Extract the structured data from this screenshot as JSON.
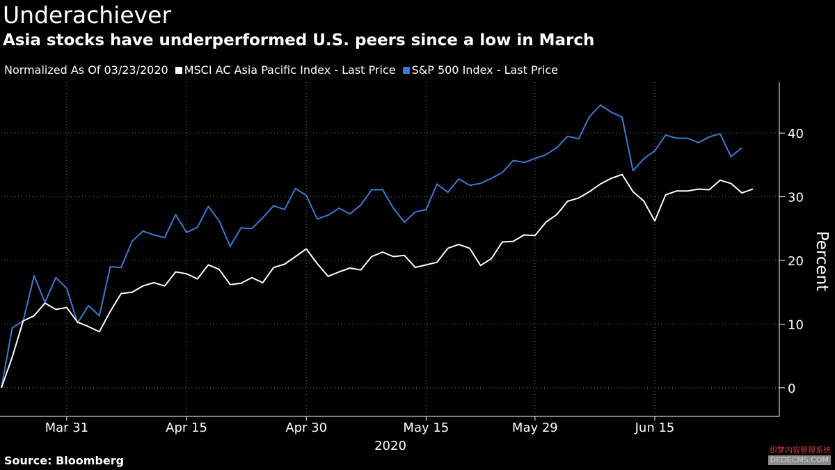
{
  "header": {
    "title": "Underachiever",
    "subtitle": "Asia stocks have underperformed U.S. peers since a low in March"
  },
  "legend": {
    "note": "Normalized As Of 03/23/2020",
    "entries": [
      {
        "label": "MSCI AC Asia Pacific Index - Last Price",
        "color": "#ffffff"
      },
      {
        "label": "S&P 500 Index - Last Price",
        "color": "#3a7bd5"
      }
    ]
  },
  "footer": {
    "source": "Source: Bloomberg"
  },
  "watermark": {
    "line1": "织梦内容管理系统",
    "line2": "DEDECMS.COM"
  },
  "chart_data": {
    "type": "line",
    "title": "Underachiever",
    "subtitle": "Asia stocks have underperformed U.S. peers since a low in March",
    "xlabel": "2020",
    "ylabel": "Percent",
    "ylim": [
      -4.5,
      48
    ],
    "yticks": [
      0,
      10,
      20,
      30,
      40
    ],
    "grid": "horizontal dotted",
    "legend_position": "top-left",
    "xticks": [
      {
        "label": "Mar 31",
        "index": 6
      },
      {
        "label": "Apr 15",
        "index": 17
      },
      {
        "label": "Apr 30",
        "index": 28
      },
      {
        "label": "May 15",
        "index": 39
      },
      {
        "label": "May 29",
        "index": 49
      },
      {
        "label": "Jun 15",
        "index": 60
      }
    ],
    "year_label": "2020",
    "series": [
      {
        "name": "MSCI AC Asia Pacific Index - Last Price",
        "color": "#ffffff",
        "values": [
          0,
          4.8,
          10.5,
          11.3,
          13.3,
          12.3,
          12.6,
          10.3,
          9.6,
          8.8,
          12.0,
          14.8,
          15.0,
          16.0,
          16.5,
          16.0,
          18.2,
          17.9,
          17.1,
          19.3,
          18.6,
          16.2,
          16.4,
          17.3,
          16.5,
          18.9,
          19.4,
          20.6,
          21.8,
          19.5,
          17.5,
          18.2,
          18.8,
          18.5,
          20.6,
          21.3,
          20.6,
          20.8,
          18.9,
          19.3,
          19.7,
          21.9,
          22.5,
          21.9,
          19.2,
          20.3,
          22.9,
          23.0,
          24.0,
          23.9,
          26.0,
          27.2,
          29.3,
          29.8,
          30.8,
          32.0,
          32.9,
          33.5,
          30.8,
          29.3,
          26.2,
          30.3,
          30.9,
          30.9,
          31.2,
          31.1,
          32.6,
          32.1,
          30.6,
          31.2
        ]
      },
      {
        "name": "S&P 500 Index - Last Price",
        "color": "#3a7bd5",
        "values": [
          0,
          9.4,
          10.5,
          17.6,
          13.4,
          17.3,
          15.6,
          10.2,
          12.9,
          11.3,
          19.0,
          18.9,
          23.0,
          24.6,
          24.0,
          23.6,
          27.2,
          24.4,
          25.2,
          28.5,
          26.2,
          22.2,
          25.1,
          25.0,
          26.7,
          28.6,
          28.0,
          31.3,
          30.2,
          26.5,
          27.1,
          28.2,
          27.3,
          28.7,
          31.1,
          31.1,
          28.2,
          26.0,
          27.6,
          28.0,
          32.0,
          30.7,
          32.8,
          31.8,
          32.1,
          32.9,
          33.8,
          35.7,
          35.4,
          36.0,
          36.6,
          37.7,
          39.5,
          39.1,
          42.6,
          44.4,
          43.3,
          42.5,
          34.1,
          36.0,
          37.2,
          39.7,
          39.2,
          39.2,
          38.5,
          39.4,
          39.9,
          36.3,
          37.7
        ]
      }
    ]
  }
}
